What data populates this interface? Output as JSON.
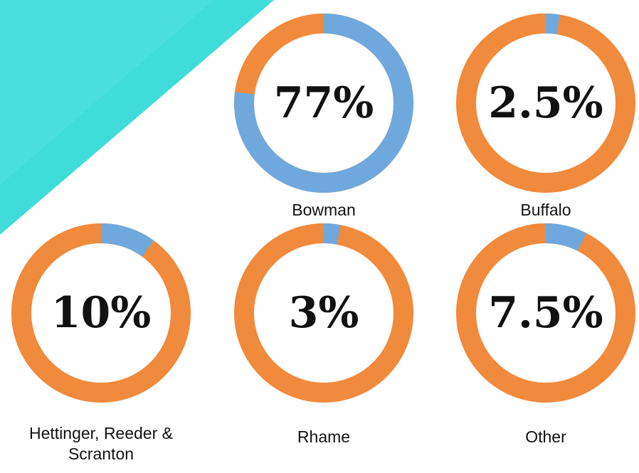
{
  "chart_data": [
    {
      "type": "donut",
      "title": "Bowman",
      "values": [
        77
      ],
      "value_labels": [
        "77%"
      ],
      "color": "#6fa8dc",
      "track_color": "#f08a3c"
    },
    {
      "type": "donut",
      "title": "Buffalo",
      "values": [
        2.5
      ],
      "value_labels": [
        "2.5%"
      ],
      "color": "#6fa8dc",
      "track_color": "#f08a3c"
    },
    {
      "type": "donut",
      "title": "Hettinger, Reeder & Scranton",
      "values": [
        10
      ],
      "value_labels": [
        "10%"
      ],
      "color": "#6fa8dc",
      "track_color": "#f08a3c"
    },
    {
      "type": "donut",
      "title": "Rhame",
      "values": [
        3
      ],
      "value_labels": [
        "3%"
      ],
      "color": "#6fa8dc",
      "track_color": "#f08a3c"
    },
    {
      "type": "donut",
      "title": "Other",
      "values": [
        7.5
      ],
      "value_labels": [
        "7.5%"
      ],
      "color": "#6fa8dc",
      "track_color": "#f08a3c"
    }
  ]
}
